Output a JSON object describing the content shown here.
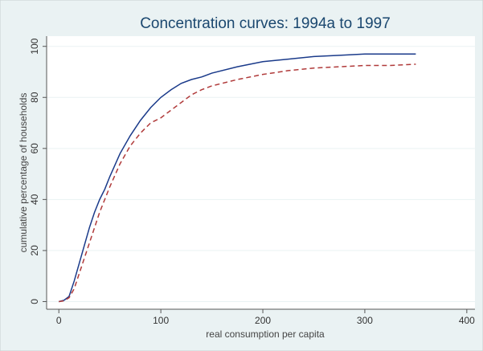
{
  "chart_data": {
    "type": "line",
    "title": "Concentration curves: 1994a to 1997",
    "x_label": "real consumption per capita",
    "y_label": "cumulative percentage of households",
    "x": [
      0,
      5,
      10,
      15,
      20,
      25,
      30,
      35,
      40,
      45,
      50,
      60,
      70,
      80,
      90,
      100,
      110,
      120,
      130,
      140,
      150,
      175,
      200,
      225,
      250,
      275,
      300,
      325,
      350
    ],
    "series": [
      {
        "color": "#1a3a8a",
        "dash": "none",
        "values": [
          0,
          0.5,
          2,
          8,
          15,
          22,
          29,
          35,
          40,
          44,
          49,
          58,
          65,
          71,
          76,
          80,
          83,
          85.5,
          87,
          88,
          89.5,
          92,
          94,
          95,
          96,
          96.5,
          97,
          97,
          97
        ]
      },
      {
        "color": "#b03a3a",
        "dash": "6,4",
        "values": [
          0,
          0.3,
          1.5,
          5,
          11,
          17,
          23,
          29,
          35,
          40,
          45,
          54,
          61,
          66,
          70,
          72,
          75,
          78,
          81,
          83,
          84.5,
          87,
          89,
          90.5,
          91.5,
          92,
          92.5,
          92.5,
          93
        ]
      }
    ],
    "xlim": [
      -12,
      408
    ],
    "ylim": [
      -3,
      104
    ],
    "xticks": [
      0,
      100,
      200,
      300,
      400
    ],
    "yticks": [
      0,
      20,
      40,
      60,
      80,
      100
    ],
    "grid": true
  }
}
